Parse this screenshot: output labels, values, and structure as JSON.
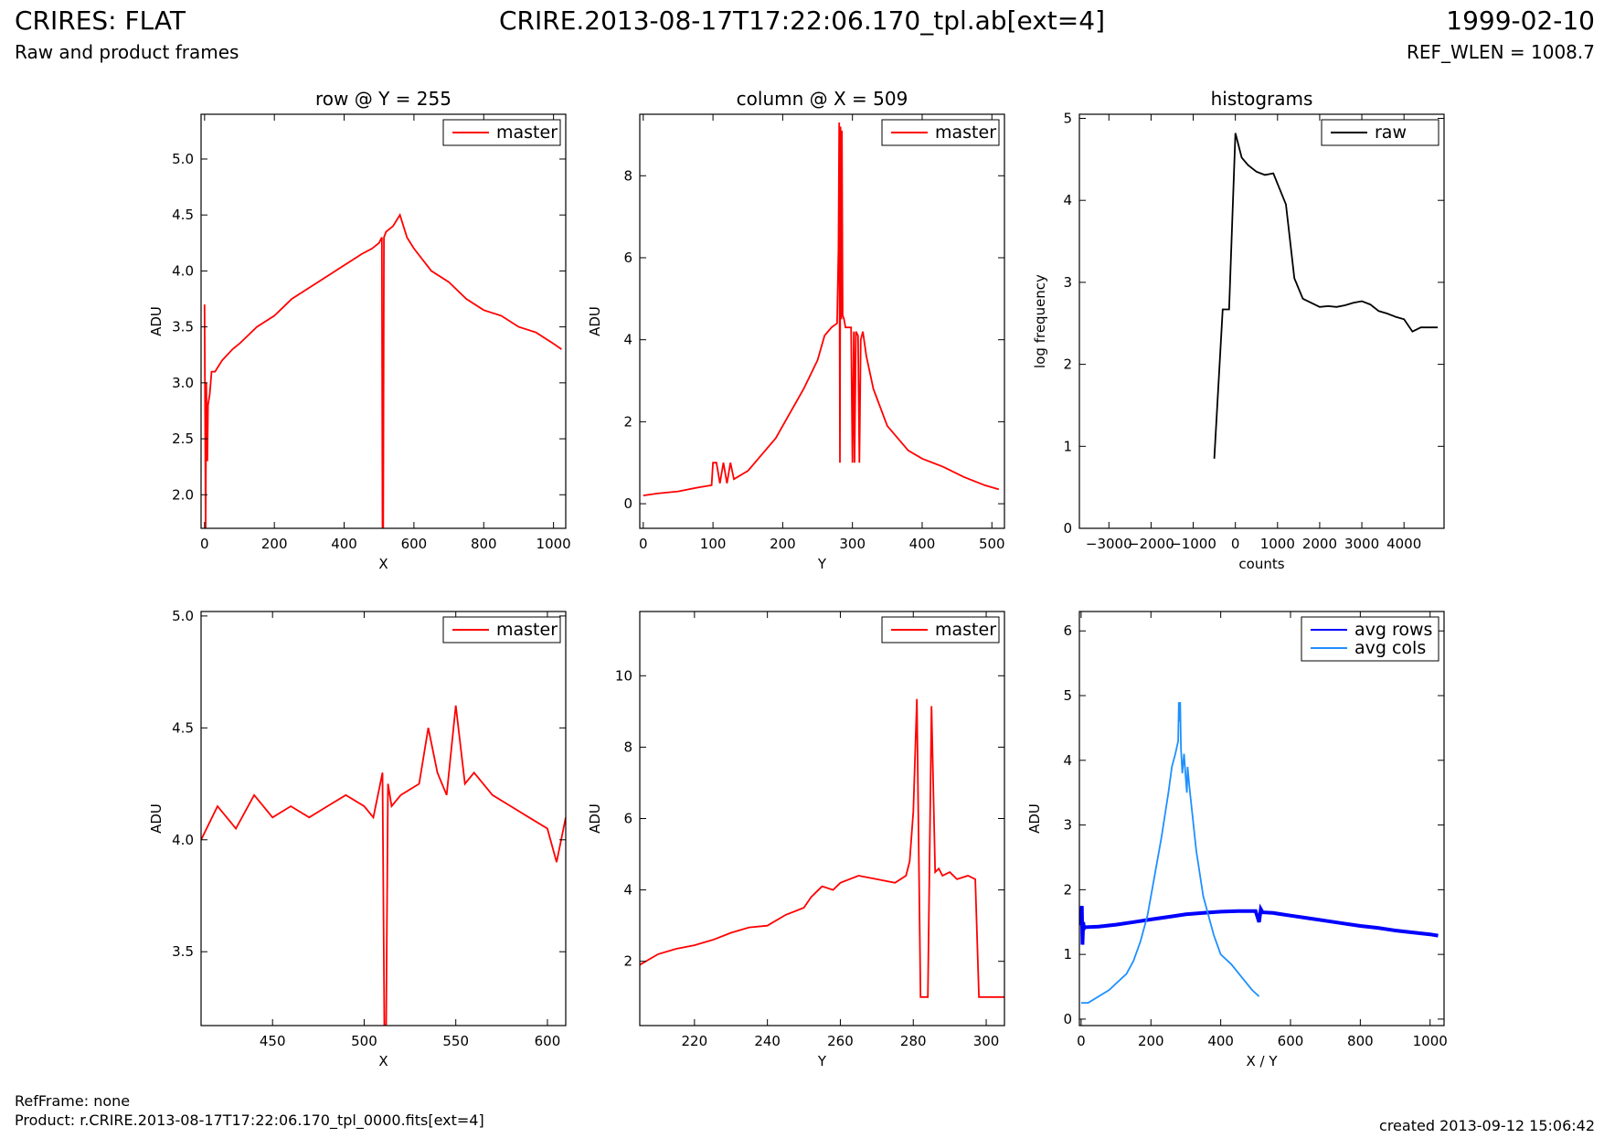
{
  "header": {
    "title_left": "CRIRES: FLAT",
    "title_center": "CRIRE.2013-08-17T17:22:06.170_tpl.ab[ext=4]",
    "title_right": "1999-02-10",
    "subtitle_left": "Raw and product frames",
    "subtitle_right": "REF_WLEN = 1008.7"
  },
  "footer": {
    "refframe": "RefFrame: none",
    "product": "Product: r.CRIRE.2013-08-17T17:22:06.170_tpl_0000.fits[ext=4]",
    "created": "created 2013-09-12 15:06:42"
  },
  "colors": {
    "master": "#ff0000",
    "raw": "#000000",
    "avg_rows": "#0000ff",
    "avg_cols": "#1e90ff"
  },
  "chart_data": [
    {
      "id": "row",
      "type": "line",
      "title": "row @ Y = 255",
      "xlabel": "X",
      "ylabel": "ADU",
      "xlim": [
        -10,
        1035
      ],
      "ylim": [
        1.7,
        5.4
      ],
      "xticks": [
        0,
        200,
        400,
        600,
        800,
        1000
      ],
      "yticks": [
        2.0,
        2.5,
        3.0,
        3.5,
        4.0,
        4.5,
        5.0
      ],
      "legend": {
        "position": "top-right",
        "entries": [
          "master"
        ]
      },
      "series": [
        {
          "name": "master",
          "color": "#ff0000",
          "x": [
            0,
            3,
            5,
            8,
            10,
            15,
            20,
            30,
            50,
            80,
            100,
            150,
            200,
            250,
            300,
            350,
            400,
            450,
            480,
            500,
            508,
            510,
            512,
            514,
            520,
            540,
            560,
            580,
            600,
            650,
            700,
            750,
            800,
            850,
            900,
            950,
            1000,
            1023
          ],
          "y": [
            3.7,
            1.7,
            3.0,
            2.3,
            2.8,
            2.9,
            3.1,
            3.1,
            3.2,
            3.3,
            3.35,
            3.5,
            3.6,
            3.75,
            3.85,
            3.95,
            4.05,
            4.15,
            4.2,
            4.25,
            4.3,
            1.7,
            1.7,
            4.3,
            4.35,
            4.4,
            4.5,
            4.3,
            4.2,
            4.0,
            3.9,
            3.75,
            3.65,
            3.6,
            3.5,
            3.45,
            3.35,
            3.3
          ]
        }
      ]
    },
    {
      "id": "column",
      "type": "line",
      "title": "column @ X = 509",
      "xlabel": "Y",
      "ylabel": "ADU",
      "xlim": [
        -5,
        518
      ],
      "ylim": [
        -0.6,
        9.5
      ],
      "xticks": [
        0,
        100,
        200,
        300,
        400,
        500
      ],
      "yticks": [
        0,
        2,
        4,
        6,
        8
      ],
      "legend": {
        "position": "top-right",
        "entries": [
          "master"
        ]
      },
      "series": [
        {
          "name": "master",
          "color": "#ff0000",
          "x": [
            0,
            20,
            50,
            80,
            98,
            100,
            105,
            110,
            115,
            120,
            125,
            130,
            150,
            170,
            190,
            210,
            230,
            250,
            260,
            270,
            278,
            280,
            281,
            282,
            283,
            284,
            285,
            286,
            288,
            290,
            295,
            298,
            300,
            302,
            303,
            305,
            308,
            310,
            312,
            315,
            320,
            330,
            350,
            380,
            400,
            430,
            460,
            490,
            510
          ],
          "y": [
            0.2,
            0.25,
            0.3,
            0.4,
            0.45,
            1.0,
            1.0,
            0.5,
            1.0,
            0.5,
            1.0,
            0.6,
            0.8,
            1.2,
            1.6,
            2.2,
            2.8,
            3.5,
            4.1,
            4.3,
            4.4,
            6.2,
            9.3,
            1.0,
            9.2,
            4.5,
            9.1,
            4.6,
            4.5,
            4.3,
            4.3,
            4.3,
            1.0,
            4.2,
            1.0,
            4.2,
            4.1,
            1.0,
            4.0,
            4.2,
            3.6,
            2.8,
            1.9,
            1.3,
            1.1,
            0.9,
            0.65,
            0.45,
            0.35
          ]
        }
      ]
    },
    {
      "id": "histograms",
      "type": "line",
      "title": "histograms",
      "xlabel": "counts",
      "ylabel": "log frequency",
      "xlim": [
        -3700,
        4950
      ],
      "ylim": [
        0,
        5.05
      ],
      "xticks": [
        -3000,
        -2000,
        -1000,
        0,
        1000,
        2000,
        3000,
        4000
      ],
      "yticks": [
        0,
        1,
        2,
        3,
        4,
        5
      ],
      "legend": {
        "position": "top-right",
        "entries": [
          "raw"
        ]
      },
      "series": [
        {
          "name": "raw",
          "color": "#000000",
          "x": [
            -500,
            -300,
            -150,
            0,
            150,
            300,
            500,
            700,
            900,
            1200,
            1400,
            1600,
            1800,
            2000,
            2200,
            2400,
            2600,
            2800,
            3000,
            3200,
            3400,
            3600,
            3800,
            4000,
            4200,
            4400,
            4600,
            4800
          ],
          "y": [
            0.85,
            2.67,
            2.67,
            4.82,
            4.52,
            4.43,
            4.35,
            4.31,
            4.33,
            3.95,
            3.05,
            2.8,
            2.75,
            2.7,
            2.71,
            2.7,
            2.72,
            2.75,
            2.77,
            2.73,
            2.65,
            2.62,
            2.58,
            2.55,
            2.4,
            2.45,
            2.45,
            2.45
          ]
        }
      ]
    },
    {
      "id": "row-zoom",
      "type": "line",
      "xlabel": "X",
      "ylabel": "ADU",
      "xlim": [
        411,
        610
      ],
      "ylim": [
        3.17,
        5.02
      ],
      "xticks": [
        450,
        500,
        550,
        600
      ],
      "yticks": [
        3.5,
        4.0,
        4.5,
        5.0
      ],
      "legend": {
        "position": "top-right",
        "entries": [
          "master"
        ]
      },
      "series": [
        {
          "name": "master",
          "color": "#ff0000",
          "x": [
            411,
            420,
            430,
            440,
            450,
            460,
            470,
            480,
            490,
            500,
            505,
            510,
            511,
            512,
            513,
            515,
            520,
            530,
            535,
            540,
            545,
            550,
            555,
            560,
            570,
            580,
            590,
            600,
            605,
            610
          ],
          "y": [
            4.0,
            4.15,
            4.05,
            4.2,
            4.1,
            4.15,
            4.1,
            4.15,
            4.2,
            4.15,
            4.1,
            4.3,
            3.17,
            3.17,
            4.25,
            4.15,
            4.2,
            4.25,
            4.5,
            4.3,
            4.2,
            4.6,
            4.25,
            4.3,
            4.2,
            4.15,
            4.1,
            4.05,
            3.9,
            4.1
          ]
        }
      ]
    },
    {
      "id": "column-zoom",
      "type": "line",
      "xlabel": "Y",
      "ylabel": "ADU",
      "xlim": [
        205,
        305
      ],
      "ylim": [
        0.2,
        11.8
      ],
      "xticks": [
        220,
        240,
        260,
        280,
        300
      ],
      "yticks": [
        2,
        4,
        6,
        8,
        10
      ],
      "legend": {
        "position": "top-right",
        "entries": [
          "master"
        ]
      },
      "series": [
        {
          "name": "master",
          "color": "#ff0000",
          "x": [
            205,
            210,
            215,
            220,
            225,
            230,
            235,
            240,
            245,
            250,
            252,
            255,
            258,
            260,
            265,
            270,
            275,
            278,
            279,
            280,
            281,
            282,
            283,
            284,
            285,
            286,
            287,
            288,
            290,
            292,
            295,
            297,
            298,
            300,
            305
          ],
          "y": [
            1.9,
            2.2,
            2.35,
            2.45,
            2.6,
            2.8,
            2.95,
            3.0,
            3.3,
            3.5,
            3.8,
            4.1,
            4.0,
            4.2,
            4.4,
            4.3,
            4.2,
            4.4,
            4.8,
            6.2,
            9.35,
            1.0,
            1.0,
            1.0,
            9.15,
            4.5,
            4.6,
            4.4,
            4.5,
            4.3,
            4.4,
            4.3,
            1.0,
            1.0,
            1.0
          ]
        }
      ]
    },
    {
      "id": "averages",
      "type": "line",
      "xlabel": "X / Y",
      "ylabel": "ADU",
      "xlim": [
        -5,
        1040
      ],
      "ylim": [
        -0.1,
        6.3
      ],
      "xticks": [
        0,
        200,
        400,
        600,
        800,
        1000
      ],
      "yticks": [
        0,
        1,
        2,
        3,
        4,
        5,
        6
      ],
      "legend": {
        "position": "top-right",
        "entries": [
          "avg rows",
          "avg cols"
        ]
      },
      "series": [
        {
          "name": "avg rows",
          "color": "#0000ff",
          "x": [
            0,
            2,
            4,
            6,
            8,
            10,
            50,
            100,
            150,
            200,
            250,
            300,
            350,
            400,
            450,
            500,
            510,
            515,
            520,
            550,
            600,
            650,
            700,
            750,
            800,
            850,
            900,
            950,
            1000,
            1023
          ],
          "y": [
            1.45,
            1.75,
            1.15,
            1.5,
            1.4,
            1.42,
            1.43,
            1.46,
            1.5,
            1.54,
            1.58,
            1.62,
            1.64,
            1.66,
            1.67,
            1.67,
            1.5,
            1.7,
            1.65,
            1.64,
            1.6,
            1.56,
            1.52,
            1.48,
            1.44,
            1.41,
            1.37,
            1.34,
            1.31,
            1.29
          ]
        },
        {
          "name": "avg cols",
          "color": "#1e90ff",
          "x": [
            0,
            20,
            50,
            80,
            100,
            130,
            150,
            170,
            190,
            210,
            230,
            250,
            260,
            270,
            278,
            280,
            282,
            284,
            286,
            290,
            295,
            300,
            303,
            305,
            310,
            320,
            330,
            350,
            380,
            400,
            430,
            460,
            490,
            510
          ],
          "y": [
            0.25,
            0.25,
            0.35,
            0.45,
            0.55,
            0.7,
            0.9,
            1.2,
            1.6,
            2.2,
            2.8,
            3.5,
            3.9,
            4.1,
            4.3,
            4.9,
            4.6,
            4.9,
            4.2,
            3.8,
            4.1,
            3.7,
            3.5,
            3.9,
            3.6,
            3.1,
            2.6,
            1.9,
            1.3,
            1.0,
            0.85,
            0.65,
            0.45,
            0.35
          ]
        }
      ]
    }
  ]
}
